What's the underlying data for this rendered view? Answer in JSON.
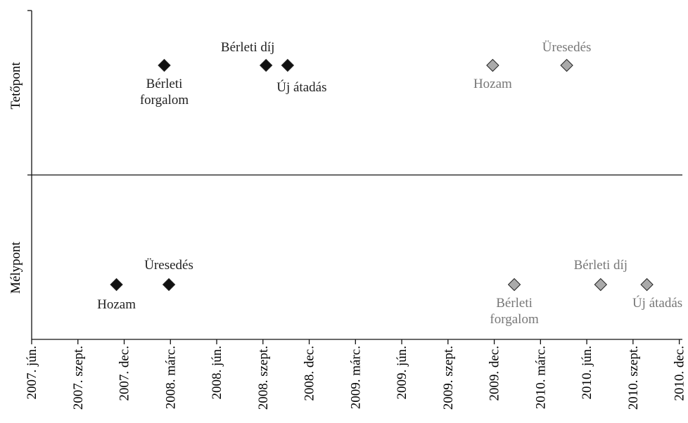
{
  "chart_data": {
    "type": "scatter",
    "y_axis_labels": [
      "Tetőpont",
      "Mélypont"
    ],
    "xlim": [
      0,
      42.2
    ],
    "xticks": [
      {
        "value": 0,
        "label": "2007. jún."
      },
      {
        "value": 3,
        "label": "2007. szept."
      },
      {
        "value": 6,
        "label": "2007. dec."
      },
      {
        "value": 9,
        "label": "2008. márc."
      },
      {
        "value": 12,
        "label": "2008. jún."
      },
      {
        "value": 15,
        "label": "2008. szept."
      },
      {
        "value": 18,
        "label": "2008. dec."
      },
      {
        "value": 21,
        "label": "2009. márc."
      },
      {
        "value": 24,
        "label": "2009. jún."
      },
      {
        "value": 27,
        "label": "2009. szept."
      },
      {
        "value": 30,
        "label": "2009. dec."
      },
      {
        "value": 33,
        "label": "2010. márc."
      },
      {
        "value": 36,
        "label": "2010. jún."
      },
      {
        "value": 39,
        "label": "2010. szept."
      },
      {
        "value": 42,
        "label": "2010. dec."
      }
    ],
    "ylim": [
      -1.5,
      1.5
    ],
    "hline": 0,
    "series": [
      {
        "color": "#111111",
        "label_color": "#222222",
        "labels": [
          "Bérleti\nforgalom",
          "Bérleti díj",
          "Új átadás"
        ],
        "x": [
          8.6,
          15.2,
          16.6
        ],
        "values": [
          1,
          1,
          1
        ]
      },
      {
        "color": "#aaaaaa",
        "label_color": "#777777",
        "labels": [
          "Hozam",
          "Üresedés"
        ],
        "x": [
          29.9,
          34.7
        ],
        "values": [
          1,
          1
        ]
      },
      {
        "color": "#111111",
        "label_color": "#222222",
        "labels": [
          "Hozam",
          "Üresedés"
        ],
        "x": [
          5.5,
          8.9
        ],
        "values": [
          -1,
          -1
        ]
      },
      {
        "color": "#aaaaaa",
        "label_color": "#777777",
        "labels": [
          "Bérleti\nforgalom",
          "Bérleti díj",
          "Új átadás"
        ],
        "x": [
          31.3,
          36.9,
          39.9
        ],
        "values": [
          -1,
          -1,
          -1
        ]
      }
    ]
  }
}
